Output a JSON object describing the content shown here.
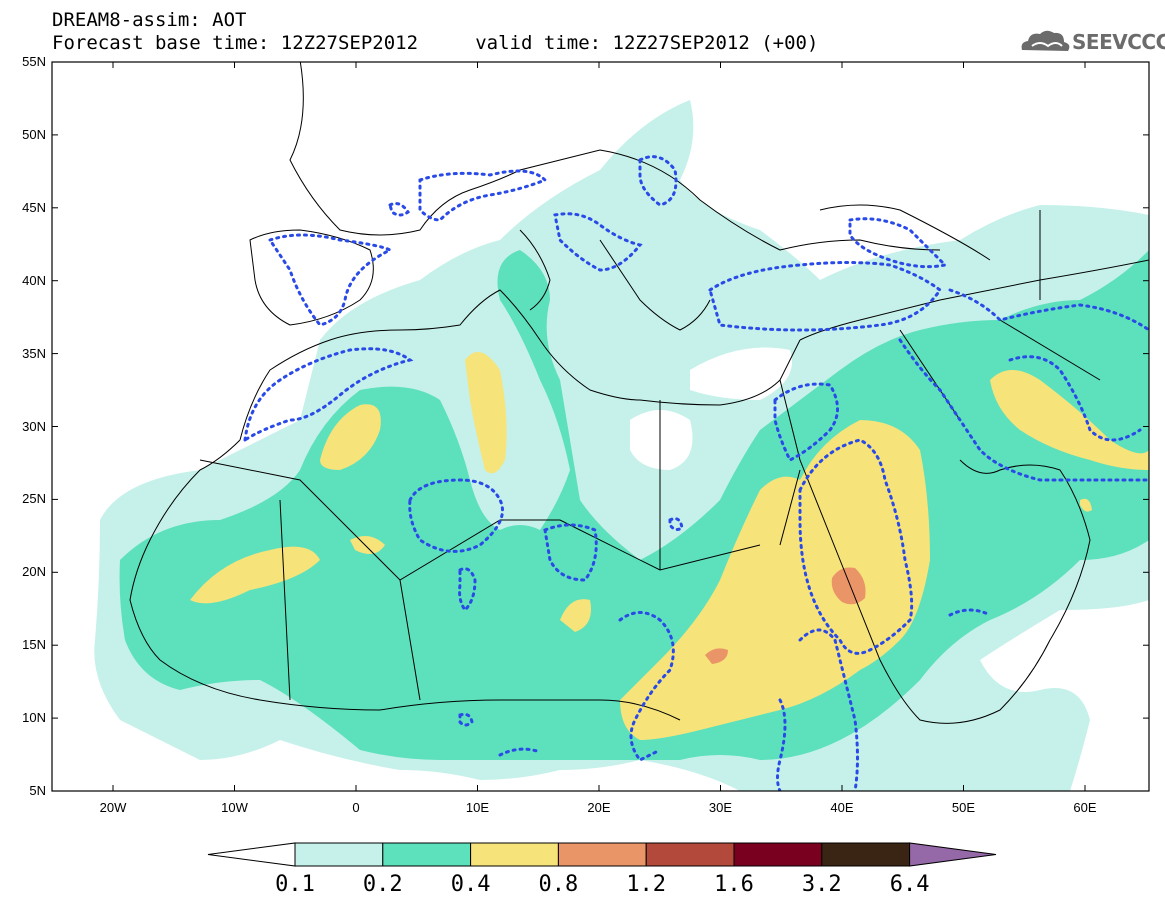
{
  "header": {
    "line1": "DREAM8-assim: AOT",
    "line2": "Forecast base time: 12Z27SEP2012     valid time: 12Z27SEP2012 (+00)"
  },
  "logo": {
    "text": "SEEVCCC",
    "icon": "cloud-logo-icon"
  },
  "map": {
    "lat_labels": [
      "55N",
      "50N",
      "45N",
      "40N",
      "35N",
      "30N",
      "25N",
      "20N",
      "15N",
      "10N",
      "5N"
    ],
    "lon_labels": [
      "20W",
      "10W",
      "0",
      "10E",
      "20E",
      "30E",
      "40E",
      "50E",
      "60E"
    ]
  },
  "colorbar": {
    "labels": [
      "0.1",
      "0.2",
      "0.4",
      "0.8",
      "1.2",
      "1.6",
      "3.2",
      "6.4"
    ],
    "colors": [
      "#ffffff",
      "#c5f1ea",
      "#5de0bc",
      "#f6e37a",
      "#ea9568",
      "#b3493a",
      "#7a0020",
      "#3a2414",
      "#9568a8"
    ]
  }
}
